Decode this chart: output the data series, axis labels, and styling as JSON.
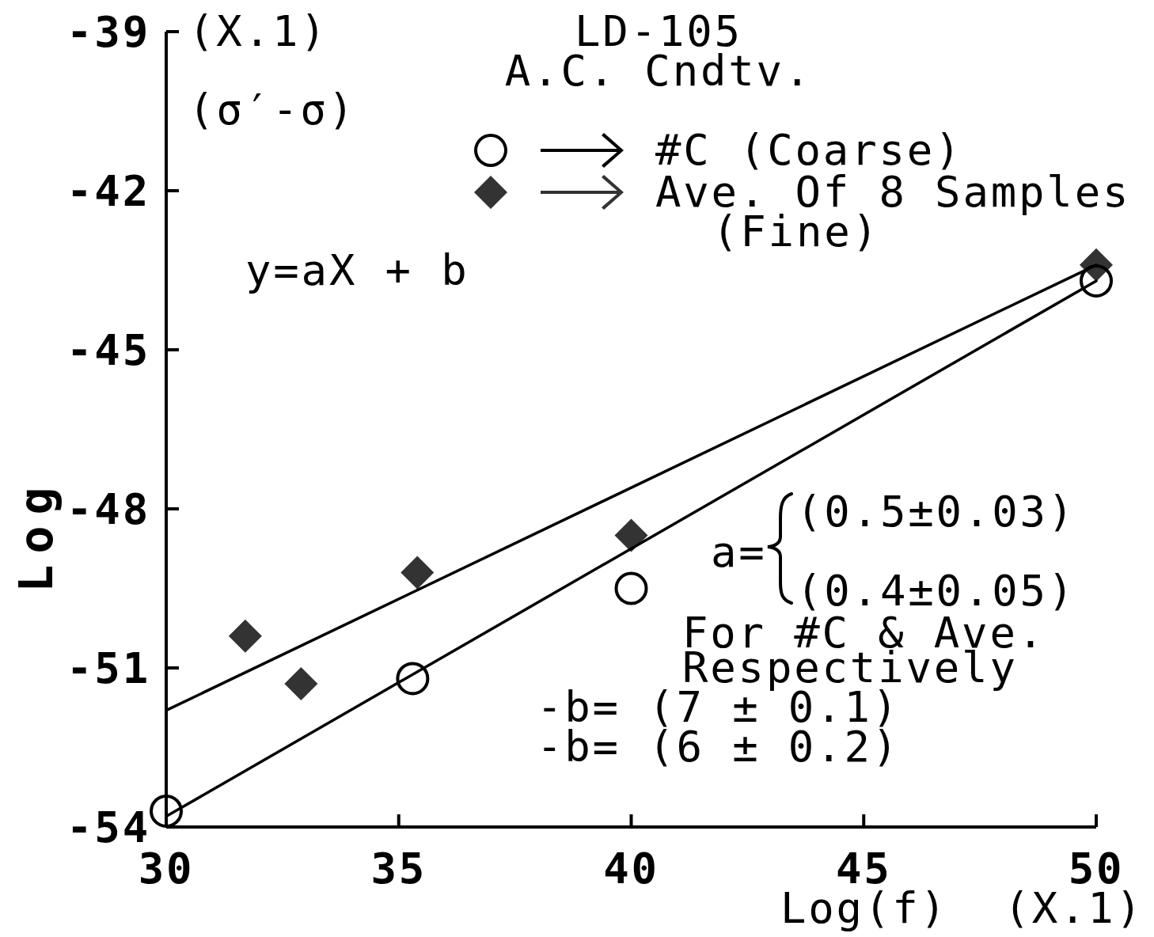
{
  "chart_data": {
    "type": "scatter",
    "title": "LD-105",
    "subtitle": "A.C. Cndtv.",
    "xlabel": "Log(f)  (X.1)",
    "ylabel": "Log",
    "annotations": [
      "y=aX + b",
      "a=",
      "(0.5±0.03)",
      "(0.4±0.05)",
      "For #C & Ave.",
      "Respectively",
      "-b= (7 ± 0.1)",
      "-b= (6 ± 0.2)",
      "(X.1)",
      "(σ′-σ)"
    ],
    "xlim": [
      30,
      50
    ],
    "xticks": [
      30,
      35,
      40,
      45,
      50
    ],
    "ylim": [
      -54,
      -39
    ],
    "yticks": [
      -54,
      -51,
      -48,
      -45,
      -42,
      -39
    ],
    "legend": "top right",
    "series": [
      {
        "name": "#C (Coarse)",
        "marker": "circle",
        "color": "#000000",
        "x": [
          30,
          35.3,
          40,
          50
        ],
        "values": [
          -53.7,
          -51.2,
          -49.5,
          -43.7
        ]
      },
      {
        "name": "Ave. Of 8 Samples (Fine)",
        "marker": "diamond",
        "color": "#333333",
        "x": [
          31.7,
          32.9,
          35.4,
          40,
          50
        ],
        "values": [
          -50.4,
          -51.3,
          -49.2,
          -48.5,
          -43.4
        ]
      },
      {
        "type": "line",
        "color": "#000000",
        "x": [
          30,
          50
        ],
        "values": [
          -53.8,
          -43.7
        ]
      },
      {
        "type": "line",
        "color": "#000000",
        "x": [
          30,
          50
        ],
        "values": [
          -51.8,
          -43.4
        ]
      }
    ]
  }
}
